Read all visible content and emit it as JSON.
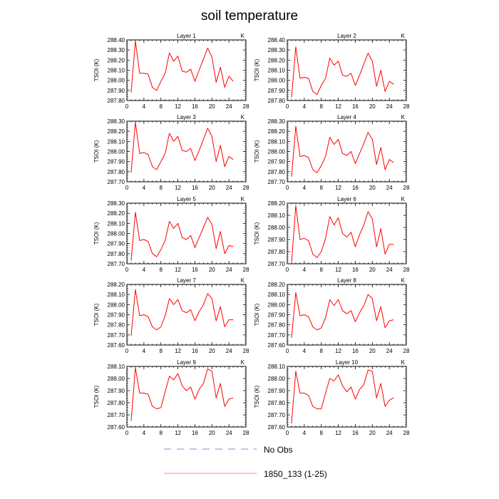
{
  "title": "soil temperature",
  "chart_data": {
    "type": "line",
    "title": "soil temperature",
    "xlim": [
      0,
      28
    ],
    "xticks": [
      0,
      4,
      8,
      12,
      16,
      20,
      24,
      28
    ],
    "x": [
      1,
      2,
      3,
      4,
      5,
      6,
      7,
      8,
      9,
      10,
      11,
      12,
      13,
      14,
      15,
      16,
      17,
      18,
      19,
      20,
      21,
      22,
      23,
      24,
      25
    ],
    "series_color": "#ff0000",
    "panels": [
      {
        "title": "Layer 1",
        "unit": "K",
        "ylabel": "TSOI (K)",
        "ylim": [
          287.8,
          288.4
        ],
        "yticks": [
          287.8,
          287.9,
          288.0,
          288.1,
          288.2,
          288.3,
          288.4
        ],
        "values": [
          287.88,
          288.39,
          288.07,
          288.07,
          288.06,
          287.93,
          287.9,
          287.99,
          288.07,
          288.27,
          288.19,
          288.24,
          288.09,
          288.08,
          288.11,
          287.99,
          288.1,
          288.21,
          288.32,
          288.23,
          287.98,
          288.13,
          287.93,
          288.04,
          287.99
        ]
      },
      {
        "title": "Layer 2",
        "unit": "K",
        "ylabel": "TSOI (K)",
        "ylim": [
          287.8,
          288.4
        ],
        "yticks": [
          287.8,
          287.9,
          288.0,
          288.1,
          288.2,
          288.3,
          288.4
        ],
        "values": [
          287.83,
          288.33,
          288.02,
          288.03,
          288.02,
          287.89,
          287.86,
          287.95,
          288.02,
          288.22,
          288.15,
          288.19,
          288.05,
          288.04,
          288.07,
          287.95,
          288.05,
          288.16,
          288.27,
          288.19,
          287.94,
          288.1,
          287.89,
          287.99,
          287.96
        ]
      },
      {
        "title": "Layer 3",
        "unit": "K",
        "ylabel": "TSOI (K)",
        "ylim": [
          287.7,
          288.3
        ],
        "yticks": [
          287.7,
          287.8,
          287.9,
          288.0,
          288.1,
          288.2,
          288.3
        ],
        "values": [
          287.79,
          288.29,
          287.98,
          287.99,
          287.97,
          287.85,
          287.82,
          287.9,
          287.98,
          288.18,
          288.1,
          288.15,
          288.01,
          288.0,
          288.03,
          287.91,
          288.01,
          288.12,
          288.23,
          288.15,
          287.9,
          288.06,
          287.85,
          287.95,
          287.92
        ]
      },
      {
        "title": "Layer 4",
        "unit": "K",
        "ylabel": "TSOI (K)",
        "ylim": [
          287.7,
          288.3
        ],
        "yticks": [
          287.7,
          287.8,
          287.9,
          288.0,
          288.1,
          288.2,
          288.3
        ],
        "values": [
          287.75,
          288.25,
          287.95,
          287.96,
          287.94,
          287.82,
          287.79,
          287.86,
          287.95,
          288.14,
          288.07,
          288.12,
          287.98,
          287.96,
          288.0,
          287.88,
          287.98,
          288.08,
          288.19,
          288.12,
          287.87,
          288.04,
          287.82,
          287.92,
          287.89
        ]
      },
      {
        "title": "Layer 5",
        "unit": "K",
        "ylabel": "TSOI (K)",
        "ylim": [
          287.7,
          288.3
        ],
        "yticks": [
          287.7,
          287.8,
          287.9,
          288.0,
          288.1,
          288.2,
          288.3
        ],
        "values": [
          287.73,
          288.21,
          287.93,
          287.94,
          287.92,
          287.8,
          287.77,
          287.84,
          287.93,
          288.12,
          288.05,
          288.1,
          287.96,
          287.94,
          287.98,
          287.86,
          287.96,
          288.06,
          288.16,
          288.09,
          287.85,
          288.02,
          287.8,
          287.88,
          287.87
        ]
      },
      {
        "title": "Layer 6",
        "unit": "K",
        "ylabel": "TSOI (K)",
        "ylim": [
          287.7,
          288.2
        ],
        "yticks": [
          287.7,
          287.8,
          287.9,
          288.0,
          288.1,
          288.2
        ],
        "values": [
          287.7,
          288.18,
          287.9,
          287.91,
          287.89,
          287.78,
          287.75,
          287.8,
          287.91,
          288.09,
          288.02,
          288.08,
          287.95,
          287.92,
          287.96,
          287.84,
          287.94,
          288.02,
          288.13,
          288.07,
          287.84,
          287.99,
          287.78,
          287.86,
          287.86
        ]
      },
      {
        "title": "Layer 7",
        "unit": "K",
        "ylabel": "TSOI (K)",
        "ylim": [
          287.6,
          288.2
        ],
        "yticks": [
          287.6,
          287.7,
          287.8,
          287.9,
          288.0,
          288.1,
          288.2
        ],
        "values": [
          287.69,
          288.15,
          287.89,
          287.9,
          287.88,
          287.78,
          287.75,
          287.78,
          287.89,
          288.06,
          288.0,
          288.05,
          287.94,
          287.92,
          287.95,
          287.84,
          287.93,
          288.0,
          288.11,
          288.06,
          287.84,
          287.98,
          287.78,
          287.85,
          287.85
        ]
      },
      {
        "title": "Layer 8",
        "unit": "K",
        "ylabel": "TSOI (K)",
        "ylim": [
          287.6,
          288.2
        ],
        "yticks": [
          287.6,
          287.7,
          287.8,
          287.9,
          288.0,
          288.1,
          288.2
        ],
        "values": [
          287.67,
          288.12,
          287.89,
          287.9,
          287.88,
          287.78,
          287.75,
          287.77,
          287.87,
          288.05,
          287.99,
          288.05,
          287.94,
          287.91,
          287.94,
          287.83,
          287.92,
          287.99,
          288.1,
          288.06,
          287.84,
          287.98,
          287.77,
          287.84,
          287.85
        ]
      },
      {
        "title": "Layer 9",
        "unit": "K",
        "ylabel": "TSOI (K)",
        "ylim": [
          287.6,
          288.1
        ],
        "yticks": [
          287.6,
          287.7,
          287.8,
          287.9,
          288.0,
          288.1
        ],
        "values": [
          287.65,
          288.09,
          287.88,
          287.88,
          287.87,
          287.77,
          287.75,
          287.76,
          287.89,
          288.02,
          287.99,
          288.04,
          287.94,
          287.9,
          287.93,
          287.83,
          287.91,
          287.96,
          288.08,
          288.06,
          287.84,
          287.96,
          287.77,
          287.83,
          287.84
        ]
      },
      {
        "title": "Layer 10",
        "unit": "K",
        "ylabel": "TSOI (K)",
        "ylim": [
          287.6,
          288.1
        ],
        "yticks": [
          287.6,
          287.7,
          287.8,
          287.9,
          288.0,
          288.1
        ],
        "values": [
          287.63,
          288.06,
          287.88,
          287.88,
          287.86,
          287.77,
          287.75,
          287.75,
          287.88,
          288.0,
          287.98,
          288.03,
          287.94,
          287.89,
          287.93,
          287.83,
          287.91,
          287.95,
          288.07,
          288.06,
          287.84,
          287.96,
          287.77,
          287.82,
          287.84
        ]
      }
    ],
    "legend": {
      "placement": "bottom",
      "entries": [
        {
          "label": "No Obs",
          "color": "#8888dd",
          "style": "dashed"
        },
        {
          "label": "1850_133 (1-25)",
          "color": "#ff8888",
          "style": "solid"
        }
      ]
    }
  }
}
